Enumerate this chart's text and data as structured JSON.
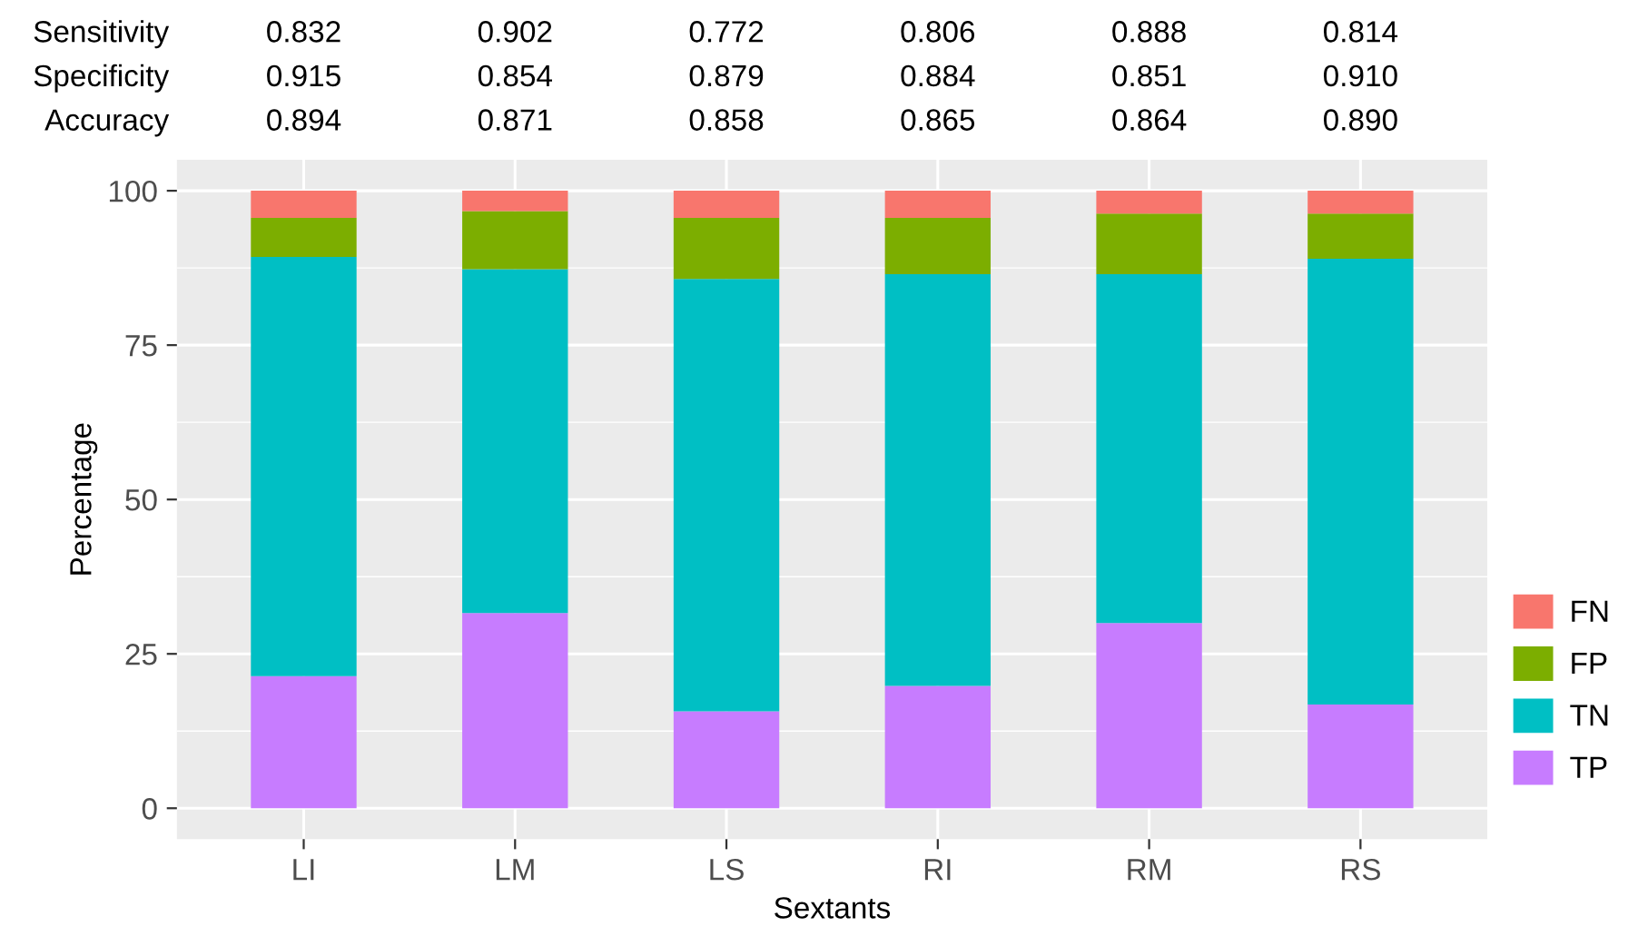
{
  "chart_data": {
    "type": "bar",
    "stacked": true,
    "xlabel": "Sextants",
    "ylabel": "Percentage",
    "categories": [
      "LI",
      "LM",
      "LS",
      "RI",
      "RM",
      "RS"
    ],
    "series": [
      {
        "name": "TP",
        "color": "#c77cff",
        "values": [
          21.4,
          31.6,
          15.7,
          19.8,
          30.0,
          16.8
        ]
      },
      {
        "name": "TN",
        "color": "#00bfc4",
        "values": [
          67.9,
          55.7,
          70.0,
          66.7,
          56.5,
          72.2
        ]
      },
      {
        "name": "FP",
        "color": "#7cae00",
        "values": [
          6.3,
          9.4,
          9.9,
          9.1,
          9.8,
          7.3
        ]
      },
      {
        "name": "FN",
        "color": "#f8766d",
        "values": [
          4.4,
          3.3,
          4.4,
          4.4,
          3.7,
          3.7
        ]
      }
    ],
    "ylim": [
      -5,
      105
    ],
    "yticks": [
      0,
      25,
      50,
      75,
      100
    ],
    "grid": true,
    "legend": "right",
    "annotations": [
      "Sensitivity",
      "0.832",
      "0.902",
      "0.772",
      "0.806",
      "0.888",
      "0.814",
      "Specificity",
      "0.915",
      "0.854",
      "0.879",
      "0.884",
      "0.851",
      "0.910",
      "Accuracy",
      "0.894",
      "0.871",
      "0.858",
      "0.865",
      "0.864",
      "0.890"
    ]
  }
}
